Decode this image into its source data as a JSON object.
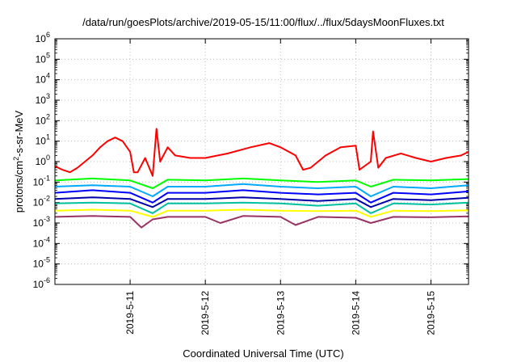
{
  "chart_data": {
    "type": "line",
    "title": "/data/run/goesPlots/archive/2019-05-15/11:00/flux/../flux/5daysMoonFluxes.txt",
    "xlabel": "Coordinated Universal Time (UTC)",
    "ylabel": {
      "pre": "protons/cm",
      "sup": "2",
      "post": "-s-sr-MeV"
    },
    "x_unit": "days since 2019-05-10 00:00 UTC",
    "xlim": [
      0.0,
      5.5
    ],
    "x_ticks": [
      {
        "x": 1,
        "label": "2019-5-11"
      },
      {
        "x": 2,
        "label": "2019-5-12"
      },
      {
        "x": 3,
        "label": "2019-5-13"
      },
      {
        "x": 4,
        "label": "2019-5-14"
      },
      {
        "x": 5,
        "label": "2019-5-15"
      }
    ],
    "y_scale": "log",
    "ylim": [
      1e-06,
      1000000.0
    ],
    "y_ticks": [
      {
        "exp": -6
      },
      {
        "exp": -5
      },
      {
        "exp": -4
      },
      {
        "exp": -3
      },
      {
        "exp": -2
      },
      {
        "exp": -1
      },
      {
        "exp": 0
      },
      {
        "exp": 1
      },
      {
        "exp": 2
      },
      {
        "exp": 3
      },
      {
        "exp": 4
      },
      {
        "exp": 5
      },
      {
        "exp": 6
      }
    ],
    "grid": true,
    "legend": "none",
    "series": [
      {
        "color": "#ff0000",
        "values": [
          [
            0.0,
            0.6
          ],
          [
            0.1,
            0.4
          ],
          [
            0.2,
            0.3
          ],
          [
            0.3,
            0.5
          ],
          [
            0.4,
            1.0
          ],
          [
            0.5,
            2.0
          ],
          [
            0.6,
            5.0
          ],
          [
            0.7,
            10.0
          ],
          [
            0.8,
            15.0
          ],
          [
            0.9,
            10.0
          ],
          [
            1.0,
            3.0
          ],
          [
            1.05,
            0.3
          ],
          [
            1.1,
            0.3
          ],
          [
            1.2,
            1.5
          ],
          [
            1.3,
            0.2
          ],
          [
            1.35,
            40.0
          ],
          [
            1.4,
            1.0
          ],
          [
            1.5,
            5.0
          ],
          [
            1.6,
            2.0
          ],
          [
            1.8,
            1.5
          ],
          [
            2.0,
            1.5
          ],
          [
            2.3,
            2.5
          ],
          [
            2.6,
            5.0
          ],
          [
            2.85,
            8.0
          ],
          [
            3.0,
            5.0
          ],
          [
            3.2,
            2.0
          ],
          [
            3.3,
            0.4
          ],
          [
            3.4,
            0.5
          ],
          [
            3.6,
            2.0
          ],
          [
            3.8,
            5.0
          ],
          [
            4.0,
            6.0
          ],
          [
            4.05,
            0.4
          ],
          [
            4.2,
            1.0
          ],
          [
            4.23,
            30.0
          ],
          [
            4.3,
            0.5
          ],
          [
            4.4,
            1.5
          ],
          [
            4.6,
            2.5
          ],
          [
            4.8,
            1.5
          ],
          [
            5.0,
            1.0
          ],
          [
            5.2,
            1.5
          ],
          [
            5.4,
            2.0
          ],
          [
            5.5,
            3.0
          ]
        ]
      },
      {
        "color": "#00ff00",
        "values": [
          [
            0.0,
            0.12
          ],
          [
            0.5,
            0.15
          ],
          [
            1.0,
            0.12
          ],
          [
            1.3,
            0.05
          ],
          [
            1.5,
            0.13
          ],
          [
            2.0,
            0.12
          ],
          [
            2.5,
            0.15
          ],
          [
            3.0,
            0.12
          ],
          [
            3.5,
            0.1
          ],
          [
            4.0,
            0.12
          ],
          [
            4.2,
            0.06
          ],
          [
            4.5,
            0.13
          ],
          [
            5.0,
            0.12
          ],
          [
            5.5,
            0.14
          ]
        ]
      },
      {
        "color": "#00aaff",
        "values": [
          [
            0.0,
            0.06
          ],
          [
            0.5,
            0.07
          ],
          [
            1.0,
            0.06
          ],
          [
            1.3,
            0.02
          ],
          [
            1.5,
            0.06
          ],
          [
            2.0,
            0.06
          ],
          [
            2.5,
            0.08
          ],
          [
            3.0,
            0.06
          ],
          [
            3.5,
            0.05
          ],
          [
            4.0,
            0.06
          ],
          [
            4.2,
            0.02
          ],
          [
            4.5,
            0.06
          ],
          [
            5.0,
            0.05
          ],
          [
            5.5,
            0.07
          ]
        ]
      },
      {
        "color": "#0000ff",
        "values": [
          [
            0.0,
            0.03
          ],
          [
            0.5,
            0.04
          ],
          [
            1.0,
            0.03
          ],
          [
            1.3,
            0.01
          ],
          [
            1.5,
            0.03
          ],
          [
            2.0,
            0.03
          ],
          [
            2.5,
            0.04
          ],
          [
            3.0,
            0.03
          ],
          [
            3.5,
            0.025
          ],
          [
            4.0,
            0.03
          ],
          [
            4.2,
            0.01
          ],
          [
            4.5,
            0.03
          ],
          [
            5.0,
            0.025
          ],
          [
            5.5,
            0.035
          ]
        ]
      },
      {
        "color": "#0000aa",
        "values": [
          [
            0.0,
            0.015
          ],
          [
            0.5,
            0.018
          ],
          [
            1.0,
            0.015
          ],
          [
            1.3,
            0.006
          ],
          [
            1.5,
            0.015
          ],
          [
            2.0,
            0.015
          ],
          [
            2.5,
            0.018
          ],
          [
            3.0,
            0.015
          ],
          [
            3.5,
            0.012
          ],
          [
            4.0,
            0.015
          ],
          [
            4.2,
            0.006
          ],
          [
            4.5,
            0.015
          ],
          [
            5.0,
            0.013
          ],
          [
            5.5,
            0.017
          ]
        ]
      },
      {
        "color": "#00c0a0",
        "values": [
          [
            0.0,
            0.009
          ],
          [
            0.5,
            0.01
          ],
          [
            1.0,
            0.009
          ],
          [
            1.3,
            0.003
          ],
          [
            1.5,
            0.009
          ],
          [
            2.0,
            0.009
          ],
          [
            2.5,
            0.01
          ],
          [
            3.0,
            0.009
          ],
          [
            3.5,
            0.007
          ],
          [
            4.0,
            0.009
          ],
          [
            4.2,
            0.003
          ],
          [
            4.5,
            0.009
          ],
          [
            5.0,
            0.008
          ],
          [
            5.5,
            0.01
          ]
        ]
      },
      {
        "color": "#ffff00",
        "values": [
          [
            0.0,
            0.004
          ],
          [
            0.5,
            0.0045
          ],
          [
            1.0,
            0.004
          ],
          [
            1.3,
            0.002
          ],
          [
            1.5,
            0.004
          ],
          [
            2.0,
            0.004
          ],
          [
            2.5,
            0.0045
          ],
          [
            3.0,
            0.004
          ],
          [
            3.5,
            0.0038
          ],
          [
            4.0,
            0.004
          ],
          [
            4.2,
            0.002
          ],
          [
            4.5,
            0.004
          ],
          [
            5.0,
            0.0038
          ],
          [
            5.5,
            0.0042
          ]
        ]
      },
      {
        "color": "#993366",
        "values": [
          [
            0.0,
            0.002
          ],
          [
            0.5,
            0.0022
          ],
          [
            1.0,
            0.002
          ],
          [
            1.15,
            0.0006
          ],
          [
            1.3,
            0.0015
          ],
          [
            1.5,
            0.002
          ],
          [
            2.0,
            0.002
          ],
          [
            2.2,
            0.001
          ],
          [
            2.5,
            0.0022
          ],
          [
            3.0,
            0.002
          ],
          [
            3.2,
            0.0008
          ],
          [
            3.5,
            0.002
          ],
          [
            4.0,
            0.0018
          ],
          [
            4.2,
            0.001
          ],
          [
            4.5,
            0.002
          ],
          [
            5.0,
            0.0019
          ],
          [
            5.5,
            0.0021
          ]
        ]
      }
    ]
  }
}
